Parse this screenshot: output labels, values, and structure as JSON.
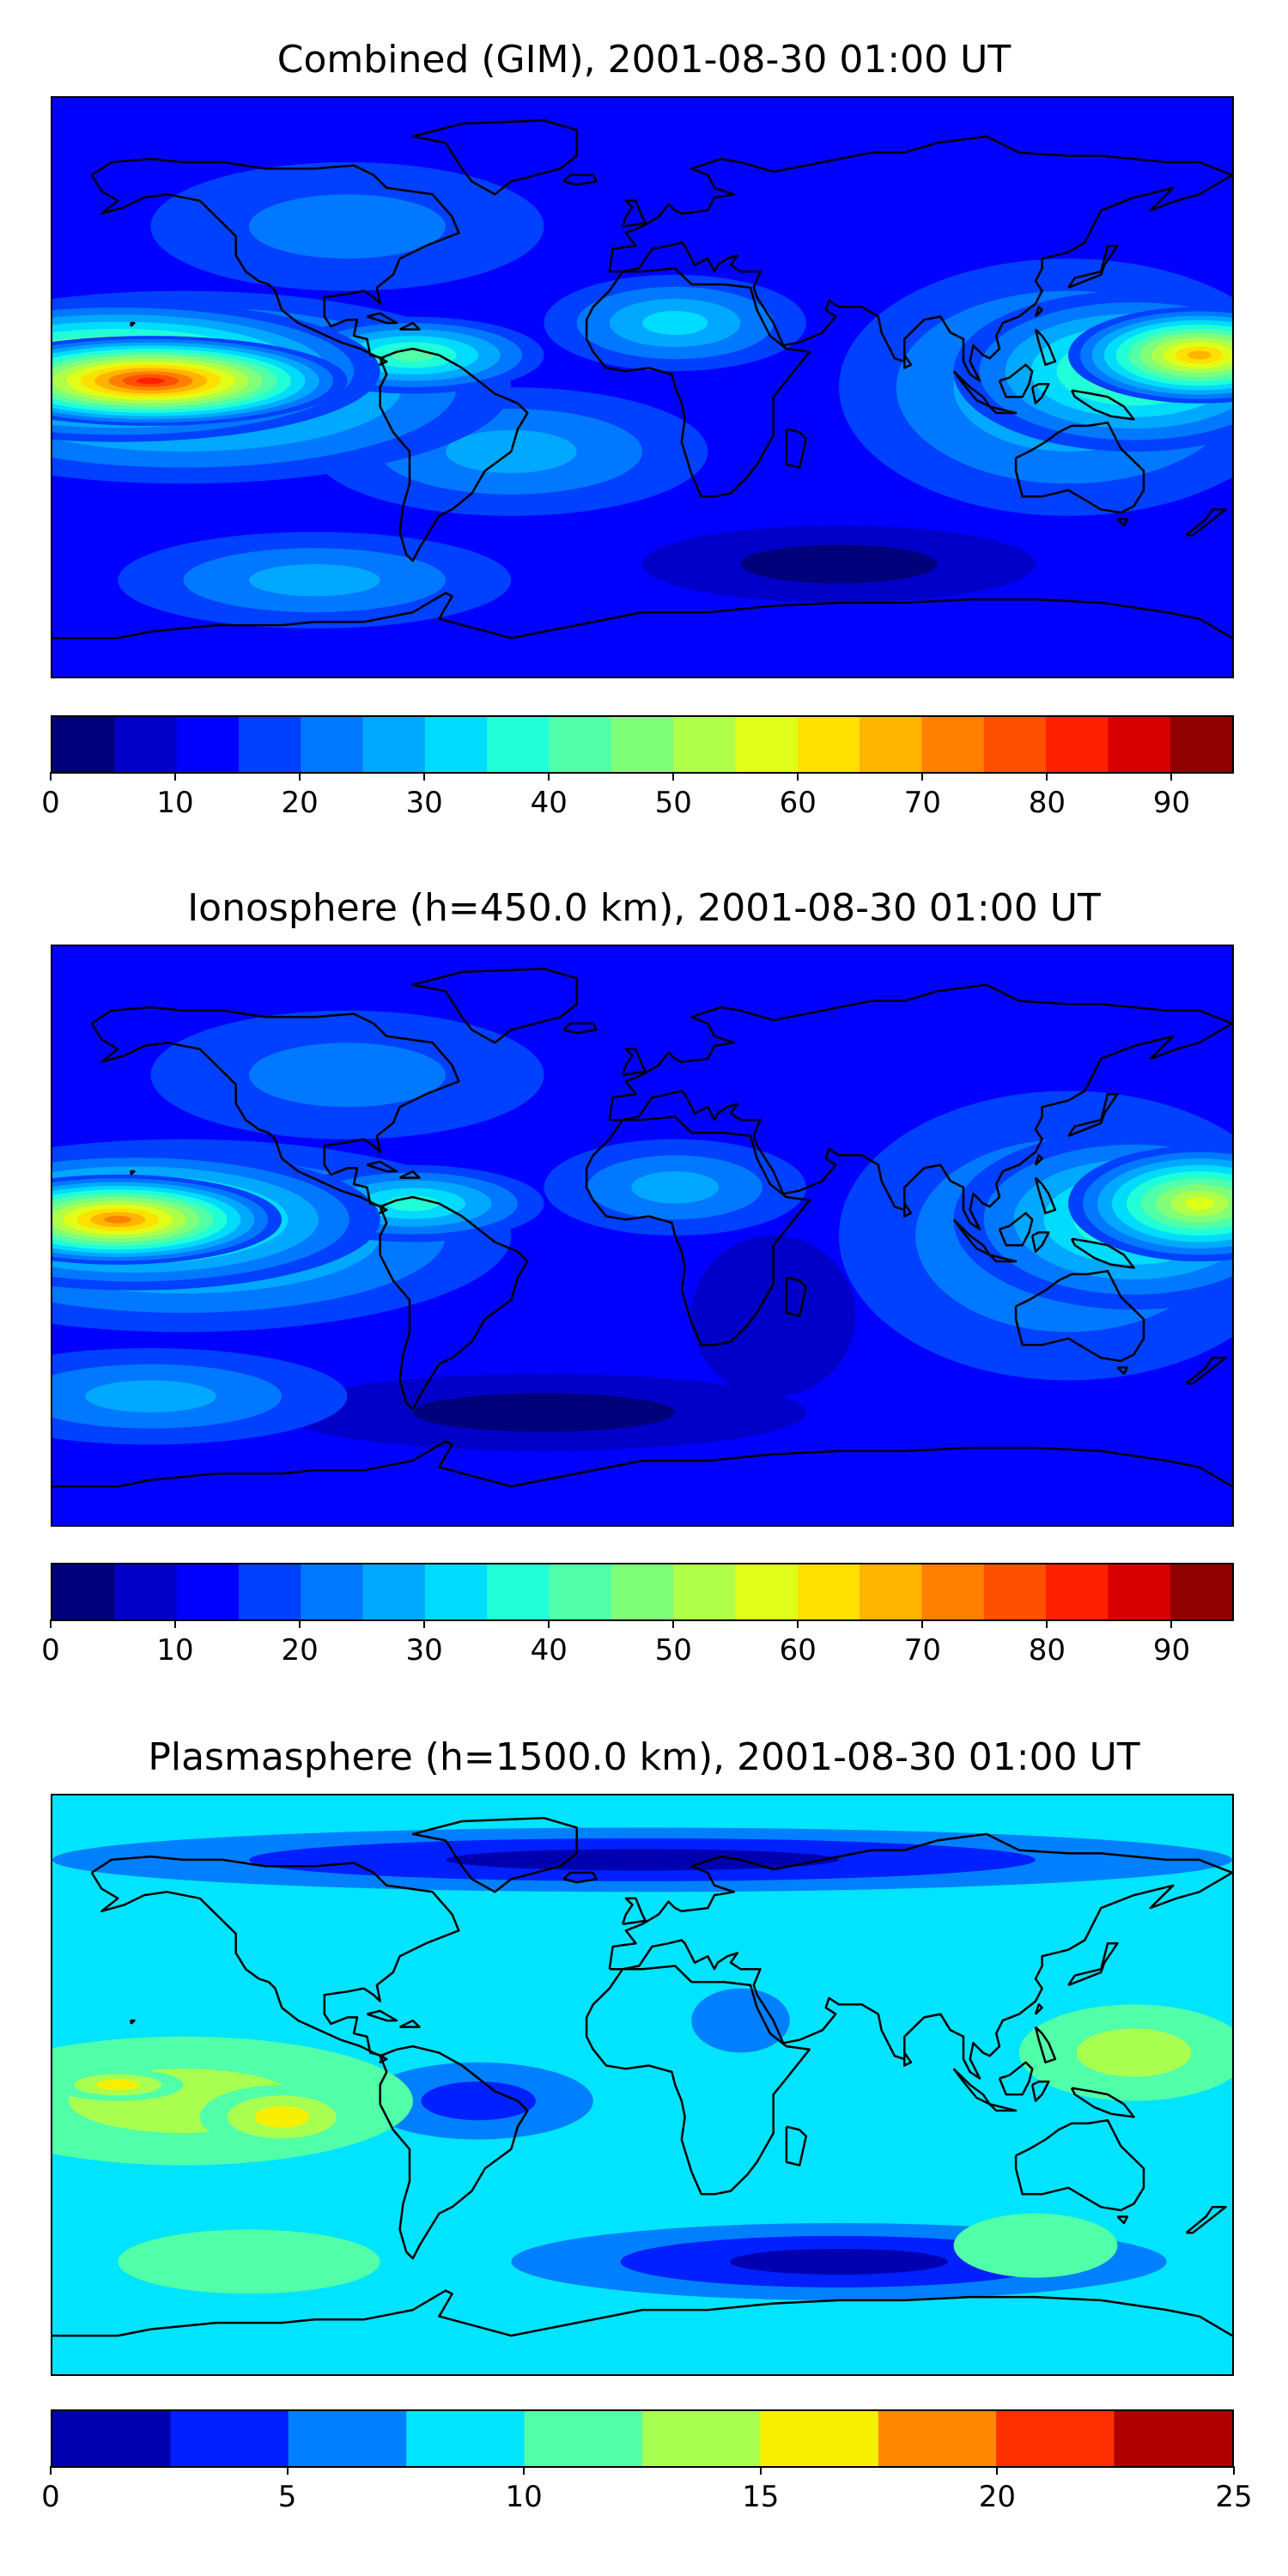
{
  "panels": [
    {
      "title": "Combined (GIM), 2001-08-30 01:00 UT",
      "colorbar": {
        "min": 0,
        "max": 95,
        "step": 5,
        "ticks": [
          0,
          10,
          20,
          30,
          40,
          50,
          60,
          70,
          80,
          90
        ],
        "colors": [
          "#00007a",
          "#0000c8",
          "#0000ff",
          "#0040ff",
          "#0078ff",
          "#00a8ff",
          "#00dcff",
          "#20ffd8",
          "#50ffa8",
          "#80ff78",
          "#b0ff48",
          "#e0ff18",
          "#ffe000",
          "#ffb400",
          "#ff8000",
          "#ff5000",
          "#ff2000",
          "#d80000",
          "#900000"
        ]
      },
      "scene": {
        "base_level": 2,
        "blobs": [
          {
            "lon": -150,
            "lat": 2,
            "rl": 60,
            "rp": 14,
            "level": 16
          },
          {
            "lon": -160,
            "lat": 5,
            "rl": 80,
            "rp": 22,
            "level": 12
          },
          {
            "lon": -140,
            "lat": 0,
            "rl": 100,
            "rp": 30,
            "level": 8
          },
          {
            "lon": 170,
            "lat": 10,
            "rl": 40,
            "rp": 15,
            "level": 13
          },
          {
            "lon": 150,
            "lat": 5,
            "rl": 55,
            "rp": 25,
            "level": 9
          },
          {
            "lon": 130,
            "lat": 0,
            "rl": 70,
            "rp": 40,
            "level": 6
          },
          {
            "lon": -70,
            "lat": 10,
            "rl": 40,
            "rp": 12,
            "level": 8
          },
          {
            "lon": 10,
            "lat": 20,
            "rl": 40,
            "rp": 15,
            "level": 6
          },
          {
            "lon": -40,
            "lat": -20,
            "rl": 60,
            "rp": 20,
            "level": 5
          },
          {
            "lon": 60,
            "lat": -55,
            "rl": 60,
            "rp": 12,
            "level": 0
          },
          {
            "lon": -90,
            "lat": 50,
            "rl": 60,
            "rp": 20,
            "level": 4
          },
          {
            "lon": -100,
            "lat": -60,
            "rl": 60,
            "rp": 15,
            "level": 5
          }
        ]
      }
    },
    {
      "title": "Ionosphere  (h=450.0 km), 2001-08-30 01:00 UT",
      "colorbar": {
        "min": 0,
        "max": 95,
        "step": 5,
        "ticks": [
          0,
          10,
          20,
          30,
          40,
          50,
          60,
          70,
          80,
          90
        ],
        "colors": [
          "#00007a",
          "#0000c8",
          "#0000ff",
          "#0040ff",
          "#0078ff",
          "#00a8ff",
          "#00dcff",
          "#20ffd8",
          "#50ffa8",
          "#80ff78",
          "#b0ff48",
          "#e0ff18",
          "#ffe000",
          "#ffb400",
          "#ff8000",
          "#ff5000",
          "#ff2000",
          "#d80000",
          "#900000"
        ]
      },
      "scene": {
        "base_level": 2,
        "blobs": [
          {
            "lon": -160,
            "lat": 5,
            "rl": 50,
            "rp": 14,
            "level": 14
          },
          {
            "lon": -155,
            "lat": 5,
            "rl": 75,
            "rp": 22,
            "level": 10
          },
          {
            "lon": -140,
            "lat": 0,
            "rl": 100,
            "rp": 30,
            "level": 7
          },
          {
            "lon": 170,
            "lat": 10,
            "rl": 40,
            "rp": 18,
            "level": 11
          },
          {
            "lon": 150,
            "lat": 5,
            "rl": 55,
            "rp": 28,
            "level": 8
          },
          {
            "lon": 130,
            "lat": 0,
            "rl": 70,
            "rp": 45,
            "level": 5
          },
          {
            "lon": -70,
            "lat": 10,
            "rl": 40,
            "rp": 12,
            "level": 7
          },
          {
            "lon": 10,
            "lat": 15,
            "rl": 40,
            "rp": 15,
            "level": 5
          },
          {
            "lon": 40,
            "lat": -25,
            "rl": 25,
            "rp": 25,
            "level": 1
          },
          {
            "lon": -30,
            "lat": -55,
            "rl": 80,
            "rp": 12,
            "level": 0
          },
          {
            "lon": -90,
            "lat": 50,
            "rl": 60,
            "rp": 20,
            "level": 4
          },
          {
            "lon": -150,
            "lat": -50,
            "rl": 60,
            "rp": 15,
            "level": 5
          }
        ]
      }
    },
    {
      "title": "Plasmasphere (h=1500.0 km), 2001-08-30 01:00 UT",
      "colorbar": {
        "min": 0,
        "max": 25,
        "step": 2.5,
        "ticks": [
          0,
          5,
          10,
          15,
          20,
          25
        ],
        "colors": [
          "#0000b0",
          "#0020ff",
          "#0080ff",
          "#00e4ff",
          "#50ffa8",
          "#a8ff50",
          "#f8f000",
          "#ff8800",
          "#ff3000",
          "#b00000"
        ]
      },
      "scene": {
        "base_level": 3,
        "blobs": [
          {
            "lon": -140,
            "lat": -5,
            "rl": 70,
            "rp": 20,
            "level": 5
          },
          {
            "lon": -110,
            "lat": -10,
            "rl": 25,
            "rp": 10,
            "level": 6
          },
          {
            "lon": -160,
            "lat": 0,
            "rl": 20,
            "rp": 5,
            "level": 6
          },
          {
            "lon": 150,
            "lat": 10,
            "rl": 35,
            "rp": 15,
            "level": 5
          },
          {
            "lon": -50,
            "lat": -5,
            "rl": 35,
            "rp": 12,
            "level": 1
          },
          {
            "lon": 30,
            "lat": 20,
            "rl": 15,
            "rp": 10,
            "level": 2
          },
          {
            "lon": 60,
            "lat": -55,
            "rl": 100,
            "rp": 12,
            "level": 0
          },
          {
            "lon": 0,
            "lat": 70,
            "rl": 180,
            "rp": 10,
            "level": 0
          },
          {
            "lon": -120,
            "lat": -55,
            "rl": 40,
            "rp": 10,
            "level": 4
          },
          {
            "lon": 120,
            "lat": -50,
            "rl": 25,
            "rp": 10,
            "level": 4
          }
        ]
      }
    }
  ]
}
